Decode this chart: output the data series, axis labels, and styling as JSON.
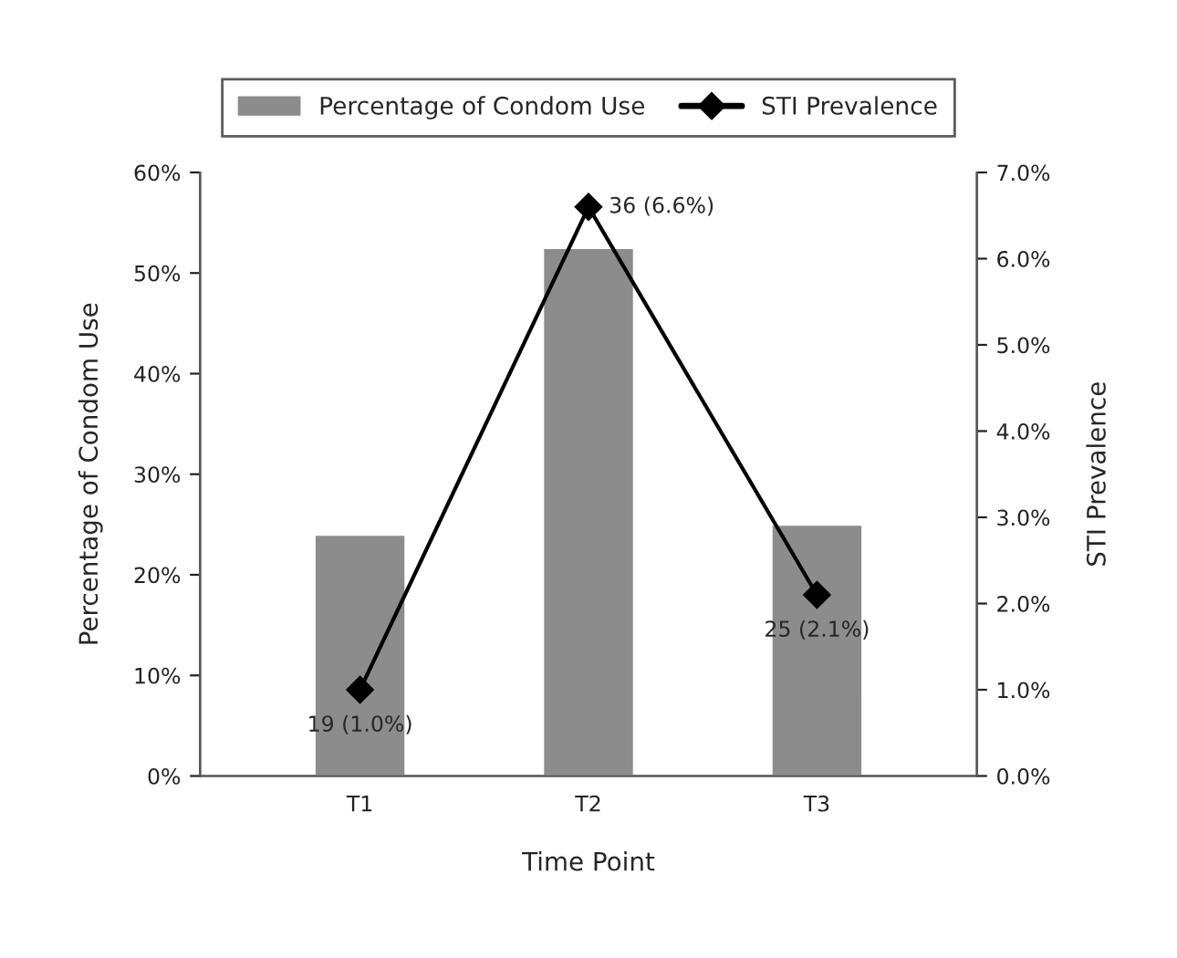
{
  "chart_data": {
    "type": "bar",
    "categories": [
      "T1",
      "T2",
      "T3"
    ],
    "xlabel": "Time Point",
    "ylabel": "Percentage of Condom Use",
    "y2label": "STI Prevalence",
    "series": [
      {
        "name": "Percentage of Condom Use",
        "color": "#8c8c8c",
        "values": [
          24,
          52.5,
          25
        ]
      },
      {
        "name": "STI Prevalence",
        "type": "line",
        "axis": "y2",
        "color": "#000000",
        "values": [
          1.0,
          6.6,
          2.1
        ],
        "value_labels": [
          "19 (1.0%)",
          "36 (6.6%)",
          "25 (2.1%)"
        ]
      }
    ],
    "ylim": [
      0,
      60
    ],
    "yticks": [
      {
        "value": 0,
        "label": "0%"
      },
      {
        "value": 10,
        "label": "10%"
      },
      {
        "value": 20,
        "label": "20%"
      },
      {
        "value": 30,
        "label": "30%"
      },
      {
        "value": 40,
        "label": "40%"
      },
      {
        "value": 50,
        "label": "50%"
      },
      {
        "value": 60,
        "label": "60%"
      }
    ],
    "y2lim": [
      0,
      7
    ],
    "y2ticks": [
      {
        "value": 0,
        "label": "0.0%"
      },
      {
        "value": 1,
        "label": "1.0%"
      },
      {
        "value": 2,
        "label": "2.0%"
      },
      {
        "value": 3,
        "label": "3.0%"
      },
      {
        "value": 4,
        "label": "4.0%"
      },
      {
        "value": 5,
        "label": "5.0%"
      },
      {
        "value": 6,
        "label": "6.0%"
      },
      {
        "value": 7,
        "label": "7.0%"
      }
    ],
    "grid": false,
    "legend": "top",
    "marker": "diamond",
    "line_style": "solid"
  }
}
